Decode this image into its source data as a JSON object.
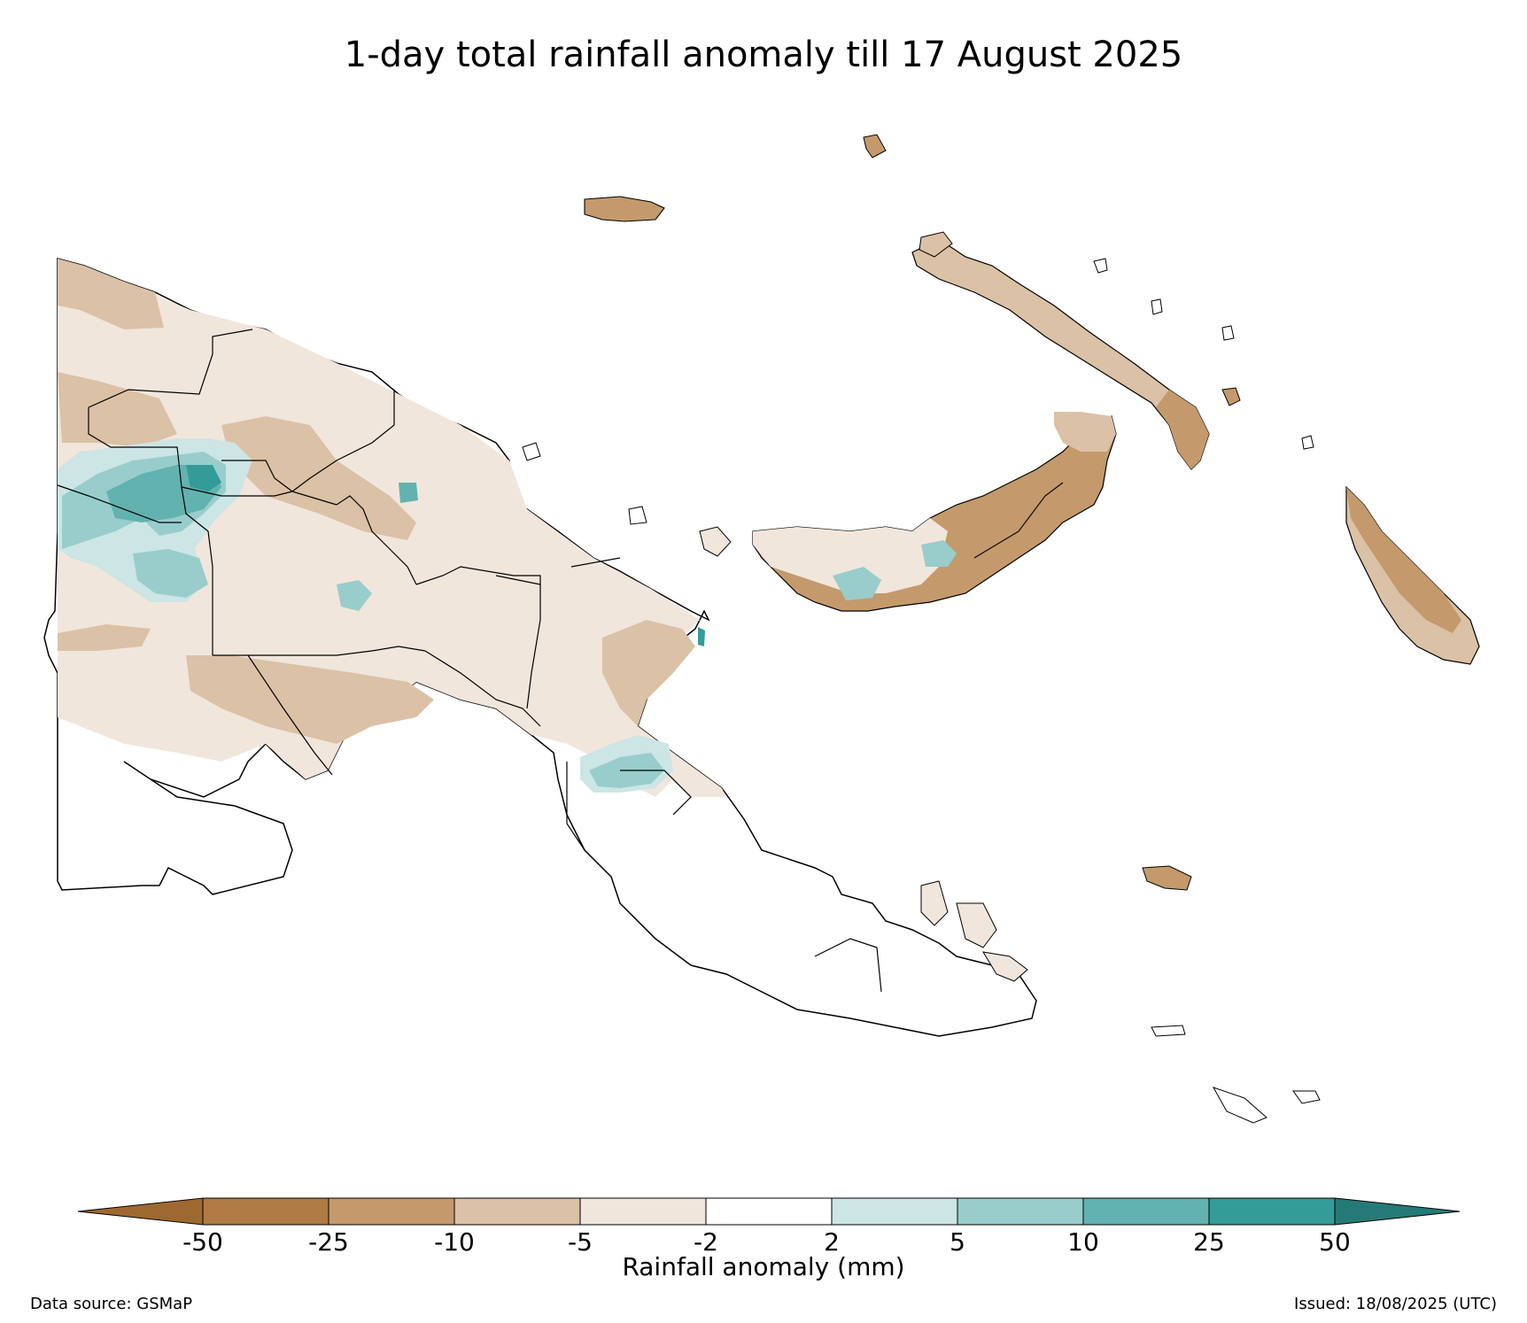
{
  "title": "1-day total rainfall anomaly till 17 August 2025",
  "colorbar": {
    "label": "Rainfall anomaly (mm)",
    "ticks": [
      "-50",
      "-25",
      "-10",
      "-5",
      "-2",
      "2",
      "5",
      "10",
      "25",
      "50"
    ],
    "colors": [
      "#9e6930",
      "#b07a44",
      "#c49a6c",
      "#dbc1a6",
      "#f1e6dc",
      "#ffffff",
      "#cce5e5",
      "#98cdcc",
      "#62b2b0",
      "#339c98",
      "#257a77"
    ],
    "extend": "both"
  },
  "footer": {
    "data_source": "Data source: GSMaP",
    "issued": "Issued: 18/08/2025 (UTC)"
  },
  "map": {
    "region": "Papua New Guinea",
    "outline_color": "#000000"
  }
}
